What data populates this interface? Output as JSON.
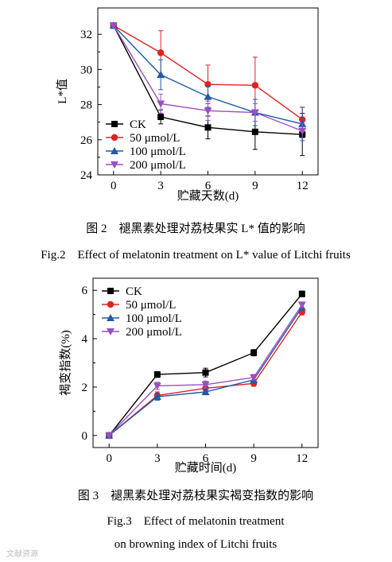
{
  "charts": [
    {
      "caption_cn": "图 2　褪黑素处理对荔枝果实 L* 值的影响",
      "caption_en_lines": [
        "Fig.2　Effect of melatonin treatment on L* value of Litchi fruits"
      ]
    },
    {
      "caption_cn": "图 3　褪黑素处理对荔枝果实褐变指数的影响",
      "caption_en_lines": [
        "Fig.3　Effect of melatonin treatment",
        "on browning index of Litchi fruits"
      ]
    }
  ],
  "watermark": "文献资源",
  "chart_data": [
    {
      "type": "line",
      "xlabel": "贮藏天数(d)",
      "ylabel": "L*值",
      "x": [
        0,
        3,
        6,
        9,
        12
      ],
      "xlim": [
        -1,
        13
      ],
      "ylim": [
        24,
        33.5
      ],
      "x_ticks": [
        0,
        3,
        6,
        9,
        12
      ],
      "y_ticks": [
        24,
        26,
        28,
        30,
        32
      ],
      "legend_position": "bottom-left",
      "grid": false,
      "series": [
        {
          "name": "CK",
          "color": "#000000",
          "marker": "square",
          "values": [
            32.5,
            27.3,
            26.7,
            26.45,
            26.3
          ],
          "errors": [
            0,
            0.4,
            0.65,
            1.0,
            1.2
          ]
        },
        {
          "name": "50 μmol/L",
          "color": "#e02222",
          "marker": "circle",
          "values": [
            32.5,
            30.95,
            29.15,
            29.1,
            27.15
          ],
          "errors": [
            0,
            1.25,
            1.1,
            1.6,
            0.7
          ]
        },
        {
          "name": "100 μmol/L",
          "color": "#1f5aa8",
          "marker": "triangle-up",
          "values": [
            32.5,
            29.7,
            28.45,
            27.55,
            26.9
          ],
          "errors": [
            0,
            0.85,
            0.6,
            0.75,
            0.95
          ]
        },
        {
          "name": "200 μmol/L",
          "color": "#9a4fc0",
          "marker": "triangle-down",
          "values": [
            32.5,
            28.05,
            27.65,
            27.55,
            26.5
          ],
          "errors": [
            0,
            0.55,
            0.55,
            0.5,
            0.4
          ]
        }
      ]
    },
    {
      "type": "line",
      "xlabel": "贮藏时间(d)",
      "ylabel": "褐变指数(%)",
      "x": [
        0,
        3,
        6,
        9,
        12
      ],
      "xlim": [
        -1,
        13
      ],
      "ylim": [
        -0.5,
        6.5
      ],
      "x_ticks": [
        0,
        3,
        6,
        9,
        12
      ],
      "y_ticks": [
        0,
        2,
        4,
        6
      ],
      "legend_position": "top-left",
      "grid": false,
      "series": [
        {
          "name": "CK",
          "color": "#000000",
          "marker": "square",
          "values": [
            0,
            2.52,
            2.6,
            3.42,
            5.85
          ],
          "errors": [
            0,
            0.12,
            0.18,
            0.13,
            0.12
          ]
        },
        {
          "name": "50 μmol/L",
          "color": "#e02222",
          "marker": "circle",
          "values": [
            0,
            1.65,
            1.95,
            2.15,
            5.1
          ],
          "errors": [
            0,
            0.15,
            0.12,
            0.12,
            0.12
          ]
        },
        {
          "name": "100 μmol/L",
          "color": "#1f5aa8",
          "marker": "triangle-up",
          "values": [
            0,
            1.6,
            1.8,
            2.3,
            5.3
          ],
          "errors": [
            0,
            0.15,
            0.12,
            0.15,
            0.12
          ]
        },
        {
          "name": "200 μmol/L",
          "color": "#9a4fc0",
          "marker": "triangle-down",
          "values": [
            0,
            2.05,
            2.1,
            2.4,
            5.4
          ],
          "errors": [
            0,
            0.15,
            0.15,
            0.12,
            0.12
          ]
        }
      ]
    }
  ]
}
